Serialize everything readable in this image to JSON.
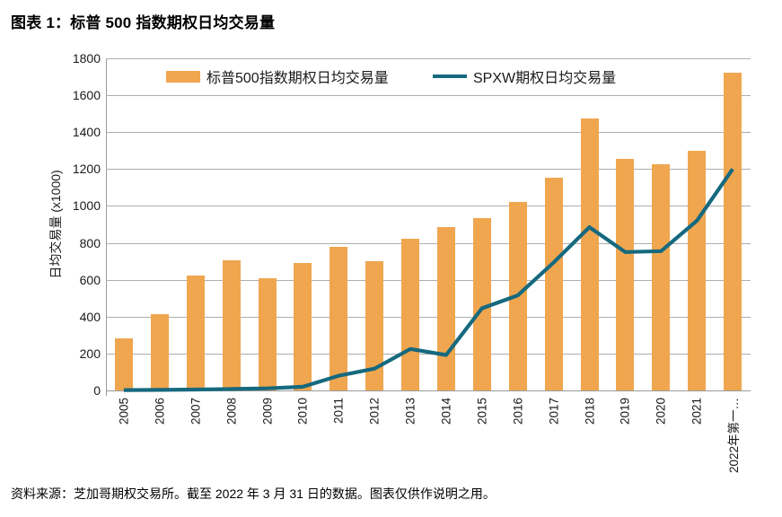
{
  "page": {
    "title": "图表 1：标普 500 指数期权日均交易量",
    "footer": "资料来源：芝加哥期权交易所。截至 2022 年 3 月 31 日的数据。图表仅供作说明之用。"
  },
  "chart_data": {
    "type": "bar",
    "title": "图表 1：标普 500 指数期权日均交易量",
    "ylabel": "日均交易量 (x1000)",
    "xlabel": "",
    "ylim": [
      0,
      1800
    ],
    "ytick_step": 200,
    "grid": true,
    "legend_position": "top-inside",
    "categories": [
      "2005",
      "2006",
      "2007",
      "2008",
      "2009",
      "2010",
      "2011",
      "2012",
      "2013",
      "2014",
      "2015",
      "2016",
      "2017",
      "2018",
      "2019",
      "2020",
      "2021",
      "2022年第一…"
    ],
    "series": [
      {
        "name": "标普500指数期权日均交易量",
        "type": "bar",
        "color": "#F0A64F",
        "values": [
          283,
          413,
          625,
          707,
          610,
          692,
          780,
          700,
          823,
          885,
          935,
          1020,
          1155,
          1472,
          1255,
          1228,
          1297,
          1722
        ]
      },
      {
        "name": "SPXW期权日均交易量",
        "type": "line",
        "color": "#16697E",
        "values": [
          2,
          3,
          5,
          8,
          11,
          20,
          80,
          118,
          225,
          192,
          445,
          515,
          693,
          885,
          750,
          755,
          920,
          1200
        ]
      }
    ]
  },
  "colors": {
    "bar": "#F0A64F",
    "line": "#16697E",
    "gridline": "#AEAEAE",
    "axis": "#9B9B9B",
    "text": "#000000"
  }
}
